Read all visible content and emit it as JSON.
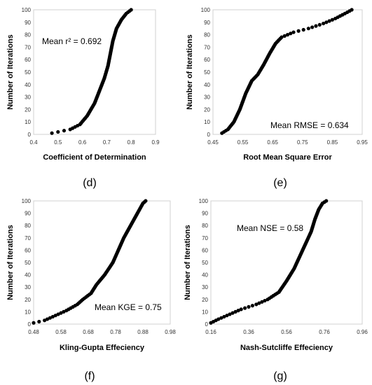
{
  "chart_data": [
    {
      "type": "scatter",
      "panel_label": "(d)",
      "xlabel": "Coefficient of Determination",
      "ylabel": "Number of Iterations",
      "annotation": "Mean r² = 0.692",
      "xlim": [
        0.4,
        0.9
      ],
      "ylim": [
        0,
        100
      ],
      "xticks": [
        "0.4",
        "0.5",
        "0.6",
        "0.7",
        "0.8",
        "0.9"
      ],
      "yticks": [
        "0",
        "10",
        "20",
        "30",
        "40",
        "50",
        "60",
        "70",
        "80",
        "90",
        "100"
      ],
      "grid": false,
      "curve": [
        [
          0.475,
          1
        ],
        [
          0.5,
          2
        ],
        [
          0.55,
          4
        ],
        [
          0.59,
          8
        ],
        [
          0.62,
          15
        ],
        [
          0.65,
          25
        ],
        [
          0.67,
          35
        ],
        [
          0.69,
          45
        ],
        [
          0.705,
          55
        ],
        [
          0.715,
          65
        ],
        [
          0.725,
          75
        ],
        [
          0.74,
          85
        ],
        [
          0.76,
          92
        ],
        [
          0.78,
          97
        ],
        [
          0.8,
          100
        ]
      ]
    },
    {
      "type": "scatter",
      "panel_label": "(e)",
      "xlabel": "Root Mean Square Error",
      "ylabel": "Number of Iterations",
      "annotation": "Mean RMSE = 0.634",
      "xlim": [
        0.45,
        0.95
      ],
      "ylim": [
        0,
        100
      ],
      "xticks": [
        "0.45",
        "0.55",
        "0.65",
        "0.75",
        "0.85",
        "0.95"
      ],
      "yticks": [
        "0",
        "10",
        "20",
        "30",
        "40",
        "50",
        "60",
        "70",
        "80",
        "90",
        "100"
      ],
      "grid": false,
      "curve": [
        [
          0.48,
          1
        ],
        [
          0.5,
          4
        ],
        [
          0.52,
          10
        ],
        [
          0.54,
          20
        ],
        [
          0.56,
          33
        ],
        [
          0.58,
          43
        ],
        [
          0.6,
          48
        ],
        [
          0.62,
          56
        ],
        [
          0.64,
          65
        ],
        [
          0.66,
          73
        ],
        [
          0.68,
          78
        ],
        [
          0.72,
          82
        ],
        [
          0.77,
          85
        ],
        [
          0.82,
          89
        ],
        [
          0.86,
          93
        ],
        [
          0.9,
          98
        ],
        [
          0.915,
          100
        ]
      ]
    },
    {
      "type": "scatter",
      "panel_label": "(f)",
      "xlabel": "Kling-Gupta Effeciency",
      "ylabel": "Number of Iterations",
      "annotation": "Mean KGE = 0.75",
      "xlim": [
        0.48,
        0.98
      ],
      "ylim": [
        0,
        100
      ],
      "xticks": [
        "0.48",
        "0.58",
        "0.68",
        "0.78",
        "0.88",
        "0.98"
      ],
      "yticks": [
        "0",
        "10",
        "20",
        "30",
        "40",
        "50",
        "60",
        "70",
        "80",
        "90",
        "100"
      ],
      "grid": false,
      "curve": [
        [
          0.48,
          1
        ],
        [
          0.52,
          3
        ],
        [
          0.56,
          7
        ],
        [
          0.6,
          11
        ],
        [
          0.64,
          16
        ],
        [
          0.66,
          20
        ],
        [
          0.69,
          25
        ],
        [
          0.71,
          32
        ],
        [
          0.74,
          40
        ],
        [
          0.77,
          50
        ],
        [
          0.79,
          60
        ],
        [
          0.81,
          70
        ],
        [
          0.83,
          78
        ],
        [
          0.85,
          86
        ],
        [
          0.87,
          94
        ],
        [
          0.88,
          98
        ],
        [
          0.89,
          100
        ]
      ]
    },
    {
      "type": "scatter",
      "panel_label": "(g)",
      "xlabel": "Nash-Sutcliffe Effeciency",
      "ylabel": "Number of Iterations",
      "annotation": "Mean NSE = 0.58",
      "xlim": [
        0.16,
        0.96
      ],
      "ylim": [
        0,
        100
      ],
      "xticks": [
        "0.16",
        "0.36",
        "0.56",
        "0.76",
        "0.96"
      ],
      "yticks": [
        "0",
        "10",
        "20",
        "30",
        "40",
        "50",
        "60",
        "70",
        "80",
        "90",
        "100"
      ],
      "grid": false,
      "curve": [
        [
          0.16,
          1
        ],
        [
          0.2,
          4
        ],
        [
          0.26,
          8
        ],
        [
          0.32,
          12
        ],
        [
          0.4,
          16
        ],
        [
          0.46,
          20
        ],
        [
          0.52,
          26
        ],
        [
          0.56,
          35
        ],
        [
          0.6,
          45
        ],
        [
          0.63,
          55
        ],
        [
          0.66,
          65
        ],
        [
          0.69,
          75
        ],
        [
          0.71,
          85
        ],
        [
          0.73,
          93
        ],
        [
          0.75,
          98
        ],
        [
          0.77,
          100
        ]
      ]
    }
  ]
}
